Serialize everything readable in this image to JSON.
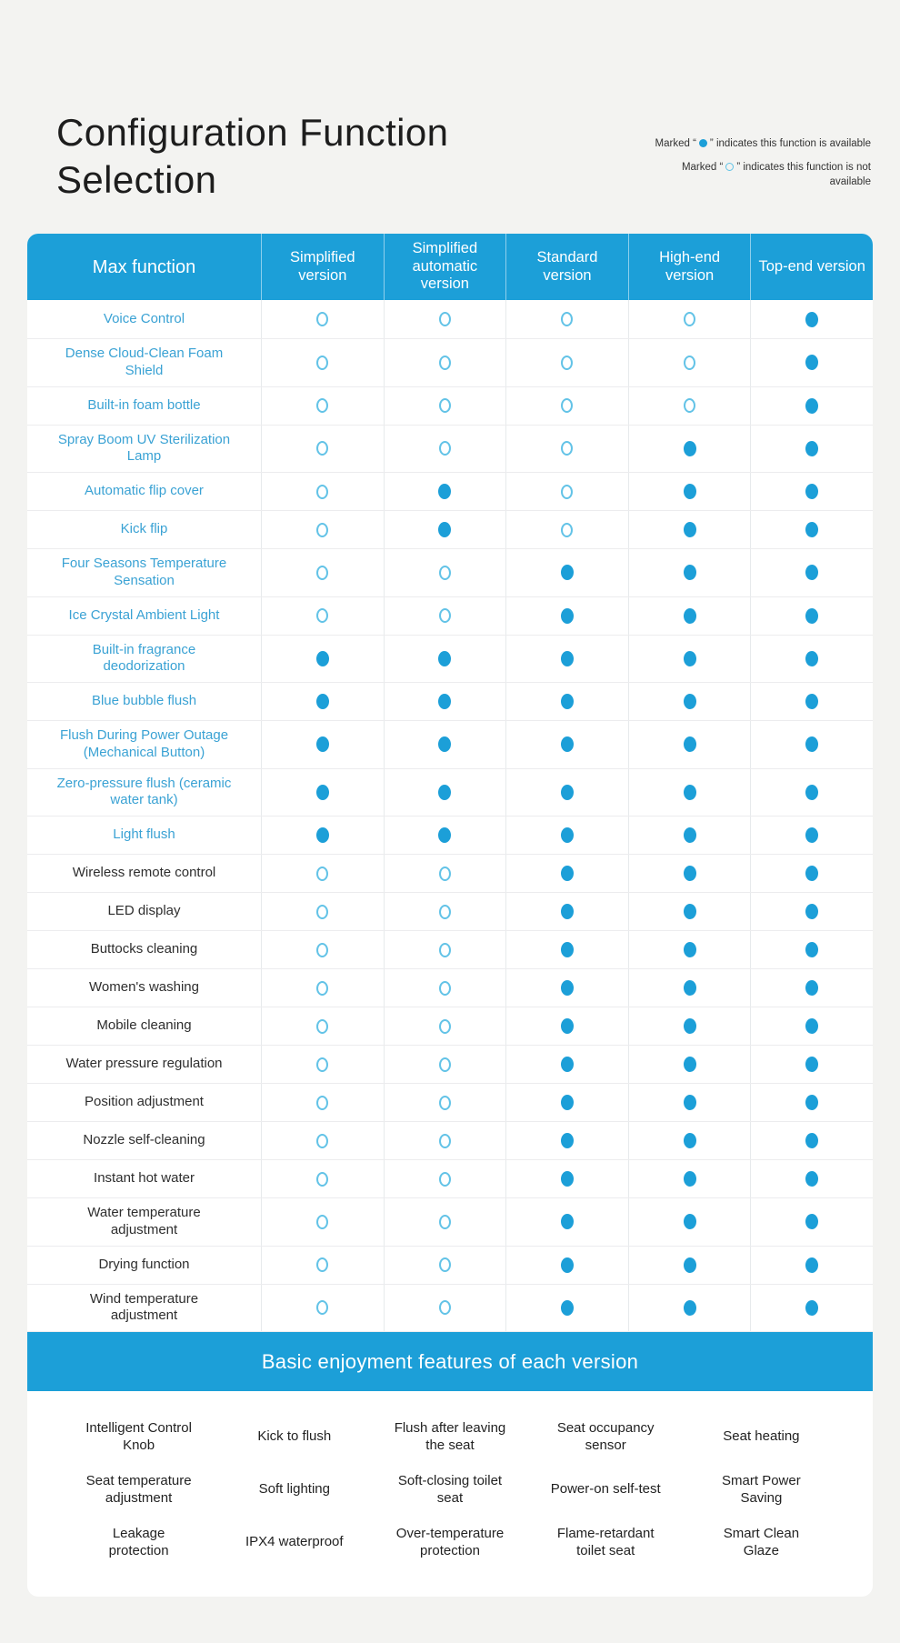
{
  "chart_data": {
    "type": "table",
    "title": "Configuration Function Selection",
    "legend": [
      {
        "symbol": "available-dot",
        "prefix": "Marked “",
        "suffix": "” indicates this function is available"
      },
      {
        "symbol": "unavailable-dot",
        "prefix": "Marked “",
        "suffix": "” indicates this function is not available"
      }
    ],
    "value_meaning": {
      "1": "available (filled dot)",
      "0": "not available (open circle)"
    },
    "columns": [
      "Max function",
      "Simplified version",
      "Simplified automatic version",
      "Standard version",
      "High-end version",
      "Top-end version"
    ],
    "rows": [
      {
        "label": "Voice Control",
        "highlighted": true,
        "values": [
          0,
          0,
          0,
          0,
          1
        ]
      },
      {
        "label": "Dense Cloud-Clean Foam Shield",
        "highlighted": true,
        "values": [
          0,
          0,
          0,
          0,
          1
        ]
      },
      {
        "label": "Built-in foam bottle",
        "highlighted": true,
        "values": [
          0,
          0,
          0,
          0,
          1
        ]
      },
      {
        "label": "Spray Boom UV Sterilization Lamp",
        "highlighted": true,
        "values": [
          0,
          0,
          0,
          1,
          1
        ]
      },
      {
        "label": "Automatic flip cover",
        "highlighted": true,
        "values": [
          0,
          1,
          0,
          1,
          1
        ]
      },
      {
        "label": "Kick flip",
        "highlighted": true,
        "values": [
          0,
          1,
          0,
          1,
          1
        ]
      },
      {
        "label": "Four Seasons Temperature Sensation",
        "highlighted": true,
        "values": [
          0,
          0,
          1,
          1,
          1
        ]
      },
      {
        "label": "Ice Crystal Ambient Light",
        "highlighted": true,
        "values": [
          0,
          0,
          1,
          1,
          1
        ]
      },
      {
        "label": "Built-in fragrance deodorization",
        "highlighted": true,
        "values": [
          1,
          1,
          1,
          1,
          1
        ]
      },
      {
        "label": "Blue bubble flush",
        "highlighted": true,
        "values": [
          1,
          1,
          1,
          1,
          1
        ]
      },
      {
        "label": "Flush During Power Outage (Mechanical Button)",
        "highlighted": true,
        "values": [
          1,
          1,
          1,
          1,
          1
        ]
      },
      {
        "label": "Zero-pressure flush (ceramic water tank)",
        "highlighted": true,
        "values": [
          1,
          1,
          1,
          1,
          1
        ]
      },
      {
        "label": "Light flush",
        "highlighted": true,
        "values": [
          1,
          1,
          1,
          1,
          1
        ]
      },
      {
        "label": "Wireless remote control",
        "highlighted": false,
        "values": [
          0,
          0,
          1,
          1,
          1
        ]
      },
      {
        "label": "LED display",
        "highlighted": false,
        "values": [
          0,
          0,
          1,
          1,
          1
        ]
      },
      {
        "label": "Buttocks cleaning",
        "highlighted": false,
        "values": [
          0,
          0,
          1,
          1,
          1
        ]
      },
      {
        "label": "Women's washing",
        "highlighted": false,
        "values": [
          0,
          0,
          1,
          1,
          1
        ]
      },
      {
        "label": "Mobile cleaning",
        "highlighted": false,
        "values": [
          0,
          0,
          1,
          1,
          1
        ]
      },
      {
        "label": "Water pressure regulation",
        "highlighted": false,
        "values": [
          0,
          0,
          1,
          1,
          1
        ]
      },
      {
        "label": "Position adjustment",
        "highlighted": false,
        "values": [
          0,
          0,
          1,
          1,
          1
        ]
      },
      {
        "label": "Nozzle self-cleaning",
        "highlighted": false,
        "values": [
          0,
          0,
          1,
          1,
          1
        ]
      },
      {
        "label": "Instant hot water",
        "highlighted": false,
        "values": [
          0,
          0,
          1,
          1,
          1
        ]
      },
      {
        "label": "Water temperature adjustment",
        "highlighted": false,
        "values": [
          0,
          0,
          1,
          1,
          1
        ]
      },
      {
        "label": "Drying function",
        "highlighted": false,
        "values": [
          0,
          0,
          1,
          1,
          1
        ]
      },
      {
        "label": "Wind temperature adjustment",
        "highlighted": false,
        "values": [
          0,
          0,
          1,
          1,
          1
        ]
      }
    ],
    "footer": {
      "title": "Basic enjoyment features of each version",
      "items": [
        "Intelligent Control Knob",
        "Kick to flush",
        "Flush after leaving the seat",
        "Seat occupancy sensor",
        "Seat heating",
        "Seat temperature adjustment",
        "Soft lighting",
        "Soft-closing toilet seat",
        "Power-on self-test",
        "Smart Power Saving",
        "Leakage protection",
        "IPX4 waterproof",
        "Over-temperature protection",
        "Flame-retardant toilet seat",
        "Smart Clean Glaze"
      ]
    },
    "colors": {
      "accent_blue": "#1c9fd8",
      "open_circle_stroke": "#63c3e7",
      "highlighted_label_text": "#3aa2d4",
      "normal_label_text": "#2e2e2e",
      "header_text": "#ffffff",
      "page_background": "#f3f3f1",
      "card_background": "#ffffff",
      "title_text": "#1d1d1d"
    }
  }
}
